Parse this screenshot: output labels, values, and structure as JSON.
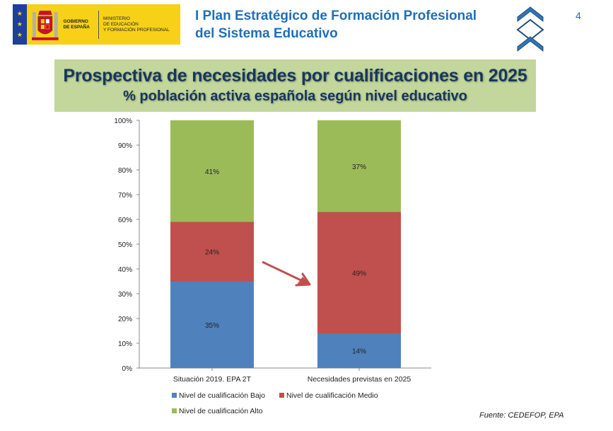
{
  "header": {
    "logo": {
      "gobierno": [
        "GOBIERNO",
        "DE ESPAÑA"
      ],
      "ministerio": [
        "MINISTERIO",
        "DE EDUCACIÓN",
        "Y FORMACIÓN PROFESIONAL"
      ]
    },
    "title_line1": "I Plan Estratégico de Formación Profesional",
    "title_line2": "del Sistema Educativo",
    "page_number": "4",
    "nav_icon": "chevron-nav-icon"
  },
  "banner": {
    "title": "Prospectiva de necesidades por cualificaciones en 2025",
    "subtitle": "% población activa española según nivel educativo"
  },
  "chart_data": {
    "type": "bar",
    "stacked": true,
    "categories": [
      "Situación 2019. EPA 2T",
      "Necesidades previstas en 2025"
    ],
    "series": [
      {
        "name": "Nivel de cualificación Bajo",
        "values": [
          35,
          14
        ],
        "color": "#4f81bd"
      },
      {
        "name": "Nivel de cualificación Medio",
        "values": [
          24,
          49
        ],
        "color": "#c0504d"
      },
      {
        "name": "Nivel de cualificación Alto",
        "values": [
          41,
          37
        ],
        "color": "#9bbb59"
      }
    ],
    "ylim": [
      0,
      100
    ],
    "yticks": [
      "0%",
      "10%",
      "20%",
      "30%",
      "40%",
      "50%",
      "60%",
      "70%",
      "80%",
      "90%",
      "100%"
    ],
    "data_labels": [
      [
        "35%",
        "24%",
        "41%"
      ],
      [
        "14%",
        "49%",
        "37%"
      ]
    ],
    "legend_position": "bottom",
    "grid": false,
    "arrow_color": "#c0504d"
  },
  "source": "Fuente: CEDEFOP, EPA"
}
